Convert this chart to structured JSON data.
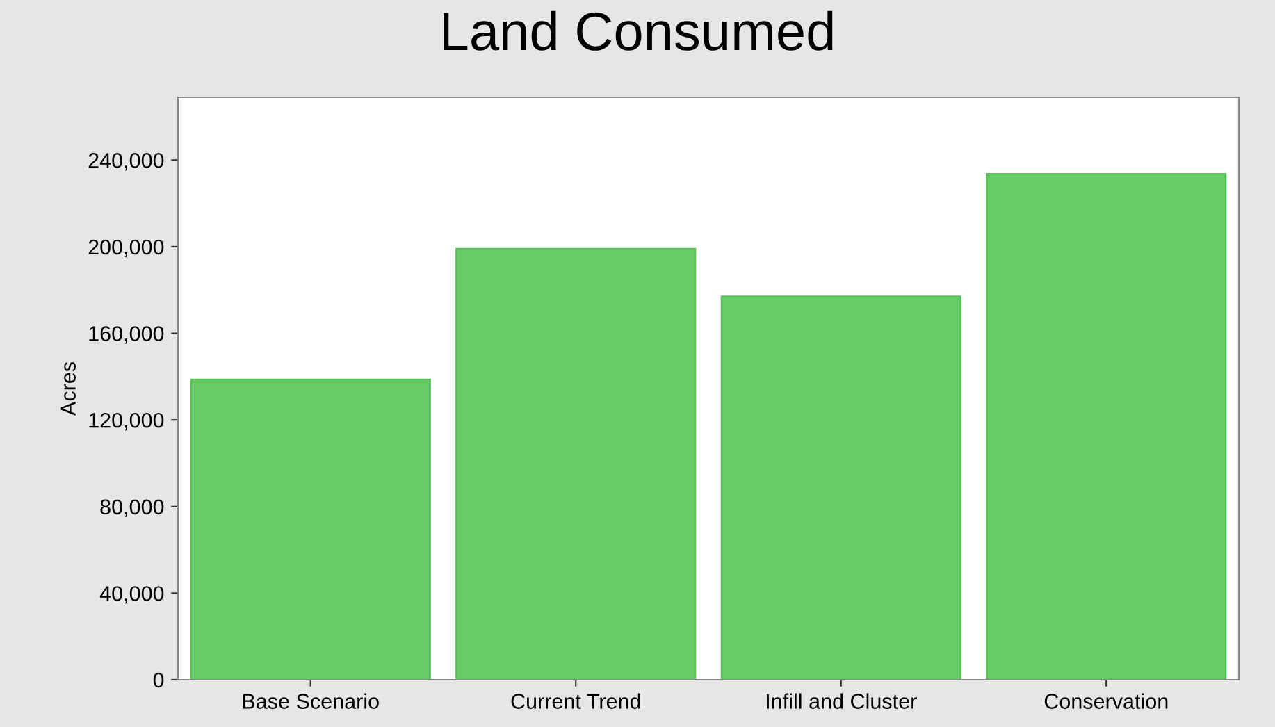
{
  "chart_data": {
    "type": "bar",
    "title": "Land Consumed",
    "ylabel": "Acres",
    "categories": [
      "Base Scenario",
      "Current Trend",
      "Infill and Cluster",
      "Conservation"
    ],
    "values": [
      138600,
      199000,
      177000,
      233600
    ],
    "color": "#66cc66",
    "ylim": [
      0,
      269000
    ],
    "yticks": [
      {
        "value": 0,
        "label": "0"
      },
      {
        "value": 40000,
        "label": "40,000"
      },
      {
        "value": 80000,
        "label": "80,000"
      },
      {
        "value": 120000,
        "label": "120,000"
      },
      {
        "value": 160000,
        "label": "160,000"
      },
      {
        "value": 200000,
        "label": "200,000"
      },
      {
        "value": 240000,
        "label": "240,000"
      }
    ],
    "grid": false,
    "legend": false
  }
}
